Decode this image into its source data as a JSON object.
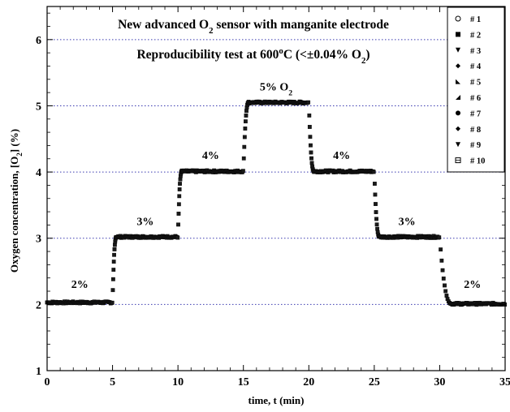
{
  "chart_data": {
    "type": "scatter",
    "title_line1": [
      "New advanced O",
      "2",
      " sensor with manganite electrode"
    ],
    "title_line2": [
      "Reproducibility test at 600",
      "o",
      "C (<±0.04% O",
      "2",
      ")"
    ],
    "xlabel": "time, t (min)",
    "ylabel": [
      "Oxygen concentration, [O",
      "2",
      "] (%)"
    ],
    "xlim": [
      0,
      35
    ],
    "ylim": [
      1,
      6.5
    ],
    "xticks": [
      0,
      5,
      10,
      15,
      20,
      25,
      30,
      35
    ],
    "yticks": [
      1,
      2,
      3,
      4,
      5,
      6
    ],
    "grid": "horizontal dotted",
    "grid_color": "#3b3bb0",
    "legend_position": "top-right",
    "levels": [
      {
        "t_start": 0,
        "t_end": 5,
        "value": 2.03
      },
      {
        "t_start": 5.3,
        "t_end": 10,
        "value": 3.02
      },
      {
        "t_start": 10.3,
        "t_end": 15,
        "value": 4.01
      },
      {
        "t_start": 15.4,
        "t_end": 20,
        "value": 5.05
      },
      {
        "t_start": 20.4,
        "t_end": 25,
        "value": 4.01
      },
      {
        "t_start": 25.4,
        "t_end": 30,
        "value": 3.02
      },
      {
        "t_start": 30.9,
        "t_end": 35,
        "value": 2.01
      }
    ],
    "annotations": [
      {
        "text": [
          "2%"
        ],
        "x": 2.5,
        "y": 2.25
      },
      {
        "text": [
          "3%"
        ],
        "x": 7.5,
        "y": 3.2
      },
      {
        "text": [
          "4%"
        ],
        "x": 12.5,
        "y": 4.2
      },
      {
        "text": [
          "5% O",
          "2"
        ],
        "x": 17.5,
        "y": 5.23
      },
      {
        "text": [
          "4%"
        ],
        "x": 22.5,
        "y": 4.2
      },
      {
        "text": [
          "3%"
        ],
        "x": 27.5,
        "y": 3.2
      },
      {
        "text": [
          "2%"
        ],
        "x": 32.5,
        "y": 2.25
      }
    ],
    "series": [
      {
        "name": "# 1",
        "marker": "circle-open"
      },
      {
        "name": "# 2",
        "marker": "square"
      },
      {
        "name": "# 3",
        "marker": "triangle-down"
      },
      {
        "name": "# 4",
        "marker": "diamond"
      },
      {
        "name": "# 5",
        "marker": "triangle-left"
      },
      {
        "name": "# 6",
        "marker": "triangle-right"
      },
      {
        "name": "# 7",
        "marker": "circle"
      },
      {
        "name": "# 8",
        "marker": "diamond"
      },
      {
        "name": "# 9",
        "marker": "triangle-down"
      },
      {
        "name": "# 10",
        "marker": "square-cross"
      }
    ]
  }
}
